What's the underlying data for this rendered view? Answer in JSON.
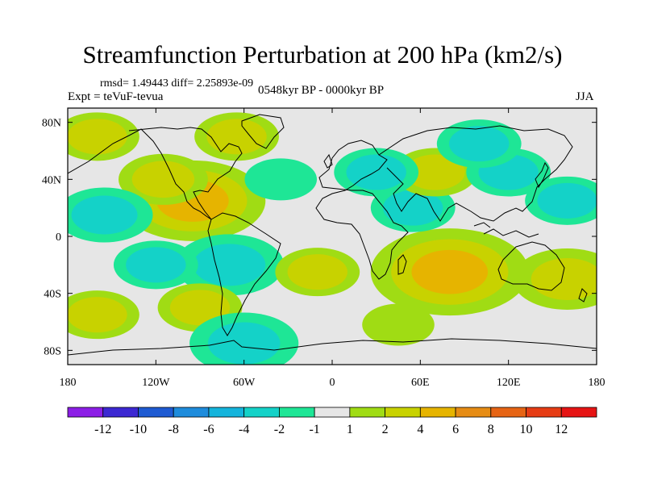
{
  "chart_data": {
    "type": "heatmap",
    "title": "Streamfunction Perturbation at 200 hPa (km2/s)",
    "stats_line": "rmsd= 1.49443 diff= 2.25893e-09",
    "experiment": "Expt = teVuF-tevua",
    "period": "0548kyr BP - 0000kyr BP",
    "season": "JJA",
    "units": "km2/s",
    "x_ticks": [
      "180",
      "120W",
      "60W",
      "0",
      "60E",
      "120E",
      "180"
    ],
    "x_tick_values": [
      -180,
      -120,
      -60,
      0,
      60,
      120,
      180
    ],
    "y_ticks": [
      "80N",
      "40N",
      "0",
      "40S",
      "80S"
    ],
    "y_tick_values": [
      80,
      40,
      0,
      -40,
      -80
    ],
    "xlim": [
      -180,
      180
    ],
    "ylim": [
      -90,
      90
    ],
    "colorbar": {
      "labels": [
        "-12",
        "-10",
        "-8",
        "-6",
        "-4",
        "-2",
        "-1",
        "1",
        "2",
        "4",
        "6",
        "8",
        "10",
        "12"
      ],
      "levels": [
        -12,
        -10,
        -8,
        -6,
        -4,
        -2,
        -1,
        1,
        2,
        4,
        6,
        8,
        10,
        12
      ],
      "colors": [
        "#8c1ee6",
        "#3c28d2",
        "#1e5ad2",
        "#1e8cdc",
        "#14b4dc",
        "#14d2c8",
        "#1ee696",
        "#e6e6e6",
        "#a0dc14",
        "#c8d200",
        "#e6b400",
        "#e68c14",
        "#e66414",
        "#e63c14",
        "#e61414"
      ]
    },
    "anomaly_features": [
      {
        "lon": -95,
        "lat": 25,
        "value": 4.5
      },
      {
        "lon": -115,
        "lat": 40,
        "value": 2.2
      },
      {
        "lon": -65,
        "lat": 70,
        "value": 2.0
      },
      {
        "lon": -155,
        "lat": 15,
        "value": -2.5
      },
      {
        "lon": -160,
        "lat": 70,
        "value": 2.0
      },
      {
        "lon": -70,
        "lat": -20,
        "value": -3.0
      },
      {
        "lon": -120,
        "lat": -20,
        "value": -2.0
      },
      {
        "lon": -160,
        "lat": -55,
        "value": 2.0
      },
      {
        "lon": -90,
        "lat": -50,
        "value": 2.0
      },
      {
        "lon": -60,
        "lat": -75,
        "value": -3.0
      },
      {
        "lon": -10,
        "lat": -25,
        "value": 2.0
      },
      {
        "lon": 80,
        "lat": -25,
        "value": 5.2
      },
      {
        "lon": 55,
        "lat": 20,
        "value": -2.0
      },
      {
        "lon": 70,
        "lat": 45,
        "value": 2.0
      },
      {
        "lon": 30,
        "lat": 45,
        "value": -2.0
      },
      {
        "lon": 120,
        "lat": 45,
        "value": -2.0
      },
      {
        "lon": 100,
        "lat": 65,
        "value": -2.0
      },
      {
        "lon": 160,
        "lat": 25,
        "value": -2.0
      },
      {
        "lon": 160,
        "lat": -30,
        "value": 3.0
      },
      {
        "lon": -35,
        "lat": 40,
        "value": -1.5
      },
      {
        "lon": 45,
        "lat": -62,
        "value": 1.5
      }
    ]
  }
}
